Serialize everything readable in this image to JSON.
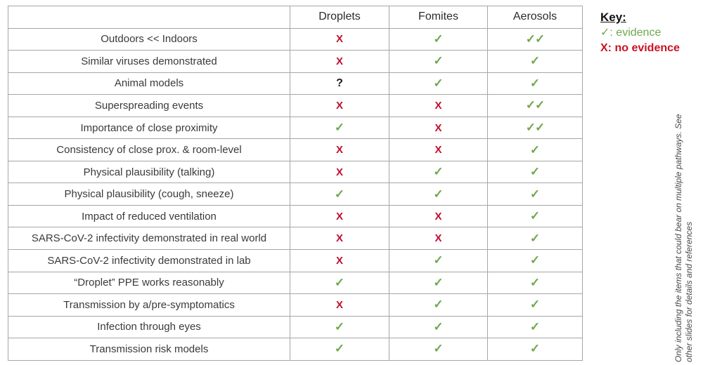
{
  "chart_data": {
    "type": "table",
    "title": "",
    "columns": [
      "Droplets",
      "Fomites",
      "Aerosols"
    ],
    "rows": [
      {
        "label": "Outdoors << Indoors",
        "marks": [
          "x",
          "check",
          "check2"
        ]
      },
      {
        "label": "Similar viruses demonstrated",
        "marks": [
          "x",
          "check",
          "check"
        ]
      },
      {
        "label": "Animal models",
        "marks": [
          "question",
          "check",
          "check"
        ]
      },
      {
        "label": "Superspreading events",
        "marks": [
          "x",
          "x",
          "check2"
        ]
      },
      {
        "label": "Importance of close proximity",
        "marks": [
          "check",
          "x",
          "check2"
        ]
      },
      {
        "label": "Consistency of close prox. & room-level",
        "marks": [
          "x",
          "x",
          "check"
        ]
      },
      {
        "label": "Physical plausibility (talking)",
        "marks": [
          "x",
          "check",
          "check"
        ]
      },
      {
        "label": "Physical plausibility (cough, sneeze)",
        "marks": [
          "check",
          "check",
          "check"
        ]
      },
      {
        "label": "Impact of reduced ventilation",
        "marks": [
          "x",
          "x",
          "check"
        ]
      },
      {
        "label": "SARS-CoV-2 infectivity demonstrated in real world",
        "marks": [
          "x",
          "x",
          "check"
        ]
      },
      {
        "label": "SARS-CoV-2 infectivity demonstrated in lab",
        "marks": [
          "x",
          "check",
          "check"
        ]
      },
      {
        "label": "“Droplet” PPE works reasonably",
        "marks": [
          "check",
          "check",
          "check"
        ]
      },
      {
        "label": "Transmission by a/pre-symptomatics",
        "marks": [
          "x",
          "check",
          "check"
        ]
      },
      {
        "label": "Infection through eyes",
        "marks": [
          "check",
          "check",
          "check"
        ]
      },
      {
        "label": "Transmission risk models",
        "marks": [
          "check",
          "check",
          "check"
        ]
      }
    ]
  },
  "glyphs": {
    "check": "✓",
    "check2": "✓✓",
    "x": "X",
    "question": "?"
  },
  "key": {
    "title": "Key:",
    "evidence_symbol": "✓",
    "evidence_label": ": evidence",
    "no_evidence_symbol": "X",
    "no_evidence_label": ": no evidence"
  },
  "side_note": "Only including the items that could bear on multiple pathways. See other slides for details and references",
  "colors": {
    "check_green": "#6fa84f",
    "x_red": "#c00f2d",
    "grid_gray": "#a6a6a6",
    "text_dark": "#3a3a3a"
  }
}
